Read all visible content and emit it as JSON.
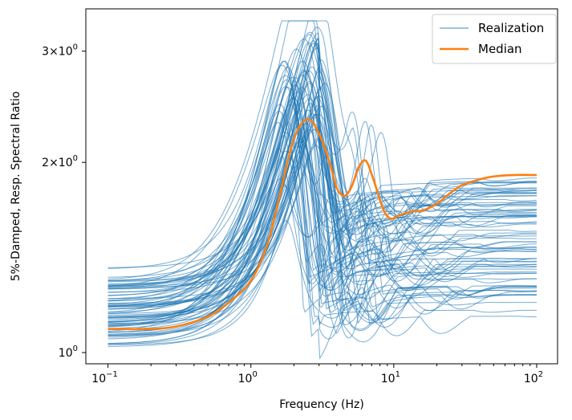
{
  "chart_data": {
    "type": "line",
    "title": "",
    "xlabel": "Frequency (Hz)",
    "ylabel": "5%-Damped, Resp. Spectral Ratio",
    "xscale": "log",
    "yscale": "log",
    "xlim": [
      0.07,
      140
    ],
    "ylim": [
      0.96,
      3.5
    ],
    "x_ticks": [
      {
        "value": 0.1,
        "base": "10",
        "exp": "−1"
      },
      {
        "value": 1,
        "base": "10",
        "exp": "0"
      },
      {
        "value": 10,
        "base": "10",
        "exp": "1"
      },
      {
        "value": 100,
        "base": "10",
        "exp": "2"
      }
    ],
    "y_ticks": [
      {
        "value": 1,
        "mant": "",
        "base": "10",
        "exp": "0"
      },
      {
        "value": 2,
        "mant": "2×",
        "base": "10",
        "exp": "0"
      },
      {
        "value": 3,
        "mant": "3×",
        "base": "10",
        "exp": "0"
      }
    ],
    "grid": false,
    "legend": {
      "position": "top-right",
      "entries": [
        "Realization",
        "Median"
      ]
    },
    "colors": {
      "realization": "#1f77b4",
      "median": "#ff7f0e"
    },
    "realizations": {
      "name": "Realization",
      "count": 80,
      "description_values": "80 random realizations; low-frequency ratio ~1.02–1.38 at 0.1 Hz, first peak 2.2–3.3 near 1.7–3.5 Hz, high-frequency plateau ~1.45–2.5 above 30 Hz"
    },
    "median": {
      "name": "Median",
      "x": [
        0.1,
        0.2,
        0.3,
        0.5,
        0.7,
        1.0,
        1.3,
        1.6,
        2.0,
        2.5,
        3.0,
        3.6,
        4.0,
        4.5,
        5.0,
        5.8,
        6.4,
        7.2,
        8.5,
        9.5,
        11,
        13,
        16,
        20,
        25,
        30,
        40,
        50,
        70,
        100
      ],
      "y": [
        1.09,
        1.09,
        1.1,
        1.14,
        1.2,
        1.3,
        1.48,
        1.78,
        2.18,
        2.34,
        2.22,
        1.98,
        1.82,
        1.77,
        1.82,
        1.98,
        2.01,
        1.88,
        1.68,
        1.63,
        1.65,
        1.67,
        1.68,
        1.72,
        1.79,
        1.84,
        1.88,
        1.9,
        1.91,
        1.91
      ]
    }
  }
}
